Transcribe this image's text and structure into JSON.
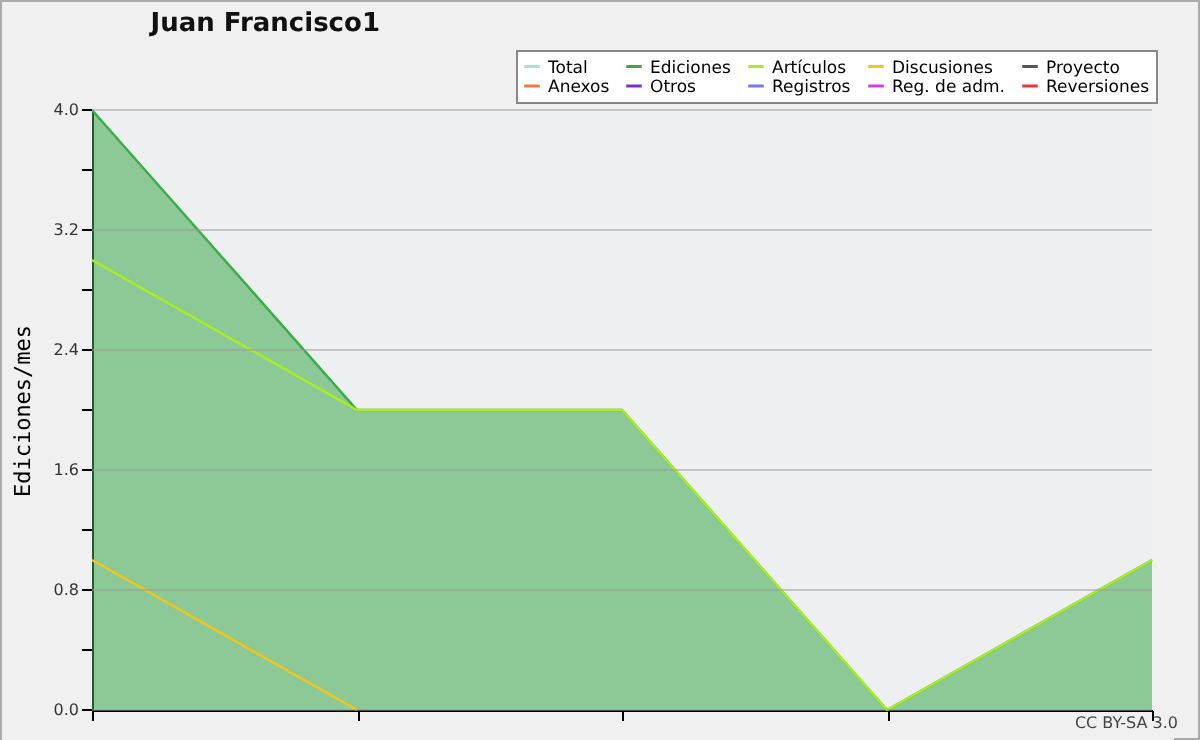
{
  "chart_data": {
    "type": "line",
    "title": "Juan Francisco1",
    "ylabel": "Ediciones/mes",
    "categories": [
      null,
      null,
      null,
      null,
      null
    ],
    "series": [
      {
        "name": "Total",
        "color": "#a8e0e0",
        "values": [
          null,
          null,
          null,
          null,
          null
        ]
      },
      {
        "name": "Ediciones",
        "color": "#3daa4a",
        "type": "area",
        "values": [
          4,
          2,
          2,
          0,
          1
        ]
      },
      {
        "name": "Artículos",
        "color": "#aaee22",
        "values": [
          3,
          2,
          2,
          0,
          1
        ]
      },
      {
        "name": "Discusiones",
        "color": "#f5c518",
        "values": [
          1,
          0,
          null,
          null,
          null
        ]
      },
      {
        "name": "Proyecto",
        "color": "#555555",
        "values": [
          null,
          null,
          null,
          null,
          null
        ]
      },
      {
        "name": "Anexos",
        "color": "#f07840",
        "values": [
          null,
          null,
          null,
          null,
          null
        ]
      },
      {
        "name": "Otros",
        "color": "#7733cc",
        "values": [
          null,
          null,
          null,
          null,
          null
        ]
      },
      {
        "name": "Registros",
        "color": "#7777ee",
        "values": [
          null,
          null,
          null,
          null,
          null
        ]
      },
      {
        "name": "Reg. de adm.",
        "color": "#cc44dd",
        "values": [
          null,
          null,
          null,
          null,
          null
        ]
      },
      {
        "name": "Reversiones",
        "color": "#ee3333",
        "values": [
          null,
          null,
          null,
          null,
          null
        ]
      }
    ],
    "ylim": [
      0,
      4
    ],
    "yticks": [
      {
        "value": 0,
        "label": "0.0"
      },
      {
        "value": 0.4,
        "label": null
      },
      {
        "value": 0.8,
        "label": "0.8"
      },
      {
        "value": 1.2,
        "label": null
      },
      {
        "value": 1.6,
        "label": "1.6"
      },
      {
        "value": 2,
        "label": null
      },
      {
        "value": 2.4,
        "label": "2.4"
      },
      {
        "value": 2.8,
        "label": null
      },
      {
        "value": 3.2,
        "label": "3.2"
      },
      {
        "value": 3.6,
        "label": null
      },
      {
        "value": 4,
        "label": "4.0"
      }
    ],
    "grid": "y",
    "legend": "top right",
    "tick_labels": "y",
    "marker": "none",
    "line_style": "solid",
    "annotations": [
      "CC BY-SA 3.0"
    ]
  }
}
